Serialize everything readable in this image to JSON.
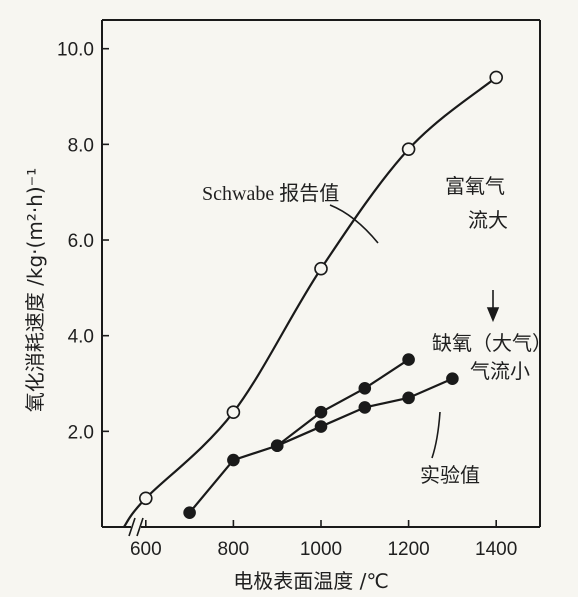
{
  "chart_data": {
    "type": "line",
    "title": "",
    "xlabel": "电极表面温度 /℃",
    "ylabel": "氧化消耗速度 /kg·(m²·h)⁻¹",
    "xlim": [
      500,
      1500
    ],
    "ylim": [
      0,
      10.6
    ],
    "x_ticks": [
      600,
      800,
      1000,
      1200,
      1400
    ],
    "x_tick_labels": [
      "600",
      "800",
      "1000",
      "1200",
      "1400"
    ],
    "y_ticks": [
      2.0,
      4.0,
      6.0,
      8.0,
      10.0
    ],
    "y_tick_labels": [
      "2.0",
      "4.0",
      "6.0",
      "8.0",
      "10.0"
    ],
    "x_axis_break": true,
    "grid": false,
    "series": [
      {
        "name": "Schwabe 报告值",
        "marker": "open-circle",
        "curve_start": [
          550,
          0
        ],
        "x": [
          600,
          800,
          1000,
          1200,
          1400
        ],
        "y": [
          0.6,
          2.4,
          5.4,
          7.9,
          9.4
        ]
      },
      {
        "name": "富氧气流大",
        "marker": "filled-circle",
        "x": [
          700,
          800,
          900,
          1000,
          1100,
          1200
        ],
        "y": [
          0.3,
          1.4,
          1.7,
          2.4,
          2.9,
          3.5
        ]
      },
      {
        "name": "缺氧（大气）气流小",
        "marker": "filled-circle",
        "x": [
          900,
          1000,
          1100,
          1200,
          1300
        ],
        "y": [
          1.7,
          2.1,
          2.5,
          2.7,
          3.1
        ]
      }
    ],
    "annotations": {
      "schwabe": "Schwabe 报告值",
      "rich_line1": "富氧气",
      "rich_line2": "流大",
      "lean_line1": "缺氧（大气）",
      "lean_line2": "气流小",
      "experimental": "实验值"
    }
  }
}
